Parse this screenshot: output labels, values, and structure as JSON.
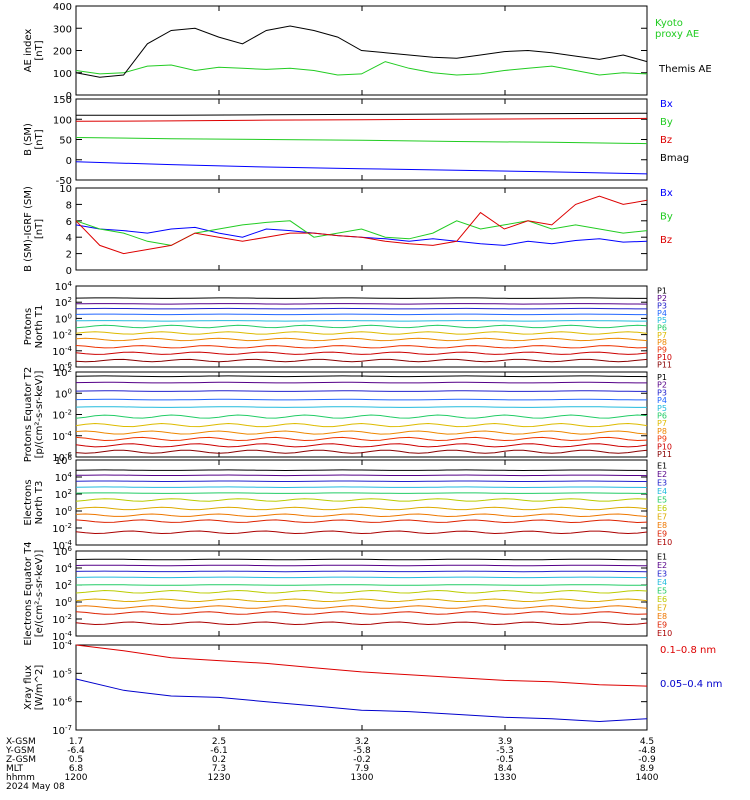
{
  "chart_data": [
    {
      "type": "line",
      "ylabel": "AE index [nT]",
      "ylim": [
        0,
        400
      ],
      "yticks": [
        "400",
        "300",
        "200",
        "100",
        "0"
      ],
      "x": [
        0,
        5,
        10,
        15,
        20,
        25,
        30,
        35,
        40,
        45,
        50,
        55,
        60,
        65,
        70,
        75,
        80,
        85,
        90,
        95,
        100,
        105,
        110,
        115,
        120
      ],
      "series": [
        {
          "name": "Kyoto proxy AE",
          "color": "#22cc22",
          "values": [
            110,
            95,
            100,
            130,
            135,
            110,
            125,
            120,
            115,
            120,
            110,
            90,
            95,
            150,
            120,
            100,
            90,
            95,
            110,
            120,
            130,
            110,
            90,
            100,
            95
          ]
        },
        {
          "name": "Themis AE",
          "color": "#000000",
          "values": [
            100,
            80,
            90,
            230,
            290,
            300,
            260,
            230,
            290,
            310,
            290,
            260,
            200,
            190,
            180,
            170,
            165,
            180,
            195,
            200,
            190,
            175,
            160,
            180,
            150
          ]
        }
      ],
      "legend": [
        {
          "lines": [
            "Kyoto",
            "proxy AE"
          ],
          "color": "#22cc22"
        },
        {
          "lines": [
            "Themis AE"
          ],
          "color": "#000000"
        }
      ]
    },
    {
      "type": "line",
      "ylabel": "B (SM) [nT]",
      "ylim": [
        -50,
        150
      ],
      "yticks": [
        "150",
        "100",
        "50",
        "0",
        "-50"
      ],
      "x": [
        0,
        20,
        40,
        60,
        80,
        100,
        120
      ],
      "series": [
        {
          "name": "Bx",
          "color": "#0000ff",
          "values": [
            -5,
            -12,
            -18,
            -22,
            -26,
            -30,
            -35
          ]
        },
        {
          "name": "By",
          "color": "#22cc22",
          "values": [
            55,
            52,
            50,
            48,
            45,
            43,
            40
          ]
        },
        {
          "name": "Bz",
          "color": "#dd0000",
          "values": [
            95,
            96,
            98,
            99,
            100,
            101,
            102
          ]
        },
        {
          "name": "Bmag",
          "color": "#000000",
          "values": [
            110,
            110,
            111,
            112,
            113,
            114,
            115
          ]
        }
      ]
    },
    {
      "type": "line",
      "ylabel": "B (SM)-IGRF (SM) [nT]",
      "ylim": [
        0,
        10
      ],
      "yticks": [
        "10",
        "8",
        "6",
        "4",
        "2",
        "0"
      ],
      "x": [
        0,
        5,
        10,
        15,
        20,
        25,
        30,
        35,
        40,
        45,
        50,
        55,
        60,
        65,
        70,
        75,
        80,
        85,
        90,
        95,
        100,
        105,
        110,
        115,
        120
      ],
      "series": [
        {
          "name": "Bx",
          "color": "#0000ff",
          "values": [
            5.5,
            5,
            4.8,
            4.5,
            5,
            5.2,
            4.5,
            4,
            5,
            4.8,
            4.5,
            4.2,
            4,
            3.8,
            3.5,
            3.8,
            3.5,
            3.2,
            3,
            3.5,
            3.2,
            3.6,
            3.8,
            3.4,
            3.5
          ]
        },
        {
          "name": "By",
          "color": "#22cc22",
          "values": [
            6,
            5,
            4.5,
            3.5,
            3,
            4.5,
            5,
            5.5,
            5.8,
            6,
            4,
            4.5,
            5,
            4,
            3.8,
            4.5,
            6,
            5,
            5.5,
            6,
            5,
            5.5,
            5,
            4.5,
            4.8
          ]
        },
        {
          "name": "Bz",
          "color": "#dd0000",
          "values": [
            6,
            3,
            2,
            2.5,
            3,
            4.5,
            4,
            3.5,
            4,
            4.5,
            4.5,
            4.2,
            4,
            3.5,
            3.2,
            3,
            3.5,
            7,
            5,
            6,
            5.5,
            8,
            9,
            8,
            8.5
          ]
        }
      ]
    },
    {
      "type": "line",
      "ylabel": "Protons North T1",
      "ylim_log": [
        -6,
        4
      ],
      "yticks": [
        "10^4",
        "10^2",
        "10^0",
        "10^-2",
        "10^-4",
        "10^-6"
      ],
      "channels": [
        "P1",
        "P2",
        "P3",
        "P4",
        "P5",
        "P6",
        "P7",
        "P8",
        "P9",
        "P10",
        "P11"
      ],
      "levels_log10": [
        2.5,
        1.8,
        1.2,
        0.5,
        -0.3,
        -1.0,
        -1.8,
        -2.6,
        -3.5,
        -4.3,
        -5.2
      ],
      "colors": [
        "#000000",
        "#550088",
        "#2222cc",
        "#2266ff",
        "#22bbdd",
        "#22cc66",
        "#ddbb00",
        "#ee8800",
        "#ee3300",
        "#cc0000",
        "#880000"
      ]
    },
    {
      "type": "line",
      "ylabel": "Protons Equator T2 [p/(cm²-s-sr-keV)]",
      "ylim_log": [
        -6,
        2
      ],
      "yticks": [
        "10^2",
        "10^0",
        "10^-2",
        "10^-4",
        "10^-6"
      ],
      "channels": [
        "P1",
        "P2",
        "P3",
        "P4",
        "P5",
        "P6",
        "P7",
        "P8",
        "P9",
        "P10",
        "P11"
      ],
      "levels_log10": [
        1.6,
        1.0,
        0.2,
        -0.6,
        -1.3,
        -2.2,
        -3.0,
        -3.7,
        -4.3,
        -4.9,
        -5.5
      ],
      "colors": [
        "#000000",
        "#550088",
        "#2222cc",
        "#2266ff",
        "#22bbdd",
        "#22cc66",
        "#ddbb00",
        "#ee8800",
        "#ee3300",
        "#cc0000",
        "#880000"
      ]
    },
    {
      "type": "line",
      "ylabel": "Electrons North T3",
      "ylim_log": [
        -4,
        6
      ],
      "yticks": [
        "10^6",
        "10^4",
        "10^2",
        "10^0",
        "10^-2",
        "10^-4"
      ],
      "channels": [
        "E1",
        "E2",
        "E3",
        "E4",
        "E5",
        "E6",
        "E7",
        "E8",
        "E9",
        "E10"
      ],
      "levels_log10": [
        4.8,
        4.2,
        3.5,
        2.8,
        2.1,
        1.3,
        0.3,
        -0.5,
        -1.2,
        -2.5
      ],
      "colors": [
        "#000000",
        "#550088",
        "#2222cc",
        "#22bbdd",
        "#22cc66",
        "#bbcc00",
        "#ddaa00",
        "#ee7700",
        "#dd2200",
        "#aa0000"
      ]
    },
    {
      "type": "line",
      "ylabel": "Electrons Equator T4 [e/(cm²-s-sr-keV)]",
      "ylim_log": [
        -4,
        6
      ],
      "yticks": [
        "10^6",
        "10^4",
        "10^2",
        "10^0",
        "10^-2",
        "10^-4"
      ],
      "channels": [
        "E1",
        "E2",
        "E3",
        "E4",
        "E5",
        "E6",
        "E7",
        "E8",
        "E9",
        "E10"
      ],
      "levels_log10": [
        5.0,
        4.3,
        3.6,
        2.9,
        2.0,
        1.2,
        0.2,
        -0.6,
        -1.3,
        -2.5
      ],
      "colors": [
        "#000000",
        "#550088",
        "#2222cc",
        "#22bbdd",
        "#22cc66",
        "#bbcc00",
        "#ddaa00",
        "#ee7700",
        "#dd2200",
        "#aa0000"
      ]
    },
    {
      "type": "line",
      "ylabel": "Xray flux [W/m^2]",
      "ylim_log": [
        -7,
        -4
      ],
      "yticks": [
        "10^-4",
        "10^-5",
        "10^-6",
        "10^-7"
      ],
      "x": [
        0,
        10,
        20,
        30,
        40,
        50,
        60,
        70,
        80,
        90,
        100,
        110,
        120
      ],
      "series": [
        {
          "name": "0.1-0.8 nm",
          "color": "#dd0000",
          "values_log10": [
            -4.0,
            -4.2,
            -4.45,
            -4.55,
            -4.65,
            -4.8,
            -4.95,
            -5.05,
            -5.15,
            -5.25,
            -5.3,
            -5.4,
            -5.45
          ]
        },
        {
          "name": "0.05-0.4 nm",
          "color": "#0000cc",
          "values_log10": [
            -5.2,
            -5.6,
            -5.8,
            -5.85,
            -6.0,
            -6.15,
            -6.3,
            -6.35,
            -6.45,
            -6.55,
            -6.6,
            -6.7,
            -6.6
          ]
        }
      ]
    }
  ],
  "xaxis": {
    "tick_labels": [
      "1.7",
      "2.5",
      "3.2",
      "3.9",
      "4.5"
    ],
    "rows": [
      {
        "label": "X-GSM",
        "values": [
          "1.7",
          "2.5",
          "3.2",
          "3.9",
          "4.5"
        ]
      },
      {
        "label": "Y-GSM",
        "values": [
          "-6.4",
          "-6.1",
          "-5.8",
          "-5.3",
          "-4.8"
        ]
      },
      {
        "label": "Z-GSM",
        "values": [
          "0.5",
          "0.2",
          "-0.2",
          "-0.5",
          "-0.9"
        ]
      },
      {
        "label": "MLT",
        "values": [
          "6.8",
          "7.3",
          "7.9",
          "8.4",
          "8.9"
        ]
      },
      {
        "label": "hhmm",
        "values": [
          "1200",
          "1230",
          "1300",
          "1330",
          "1400"
        ]
      }
    ],
    "date": "2024 May 08"
  }
}
